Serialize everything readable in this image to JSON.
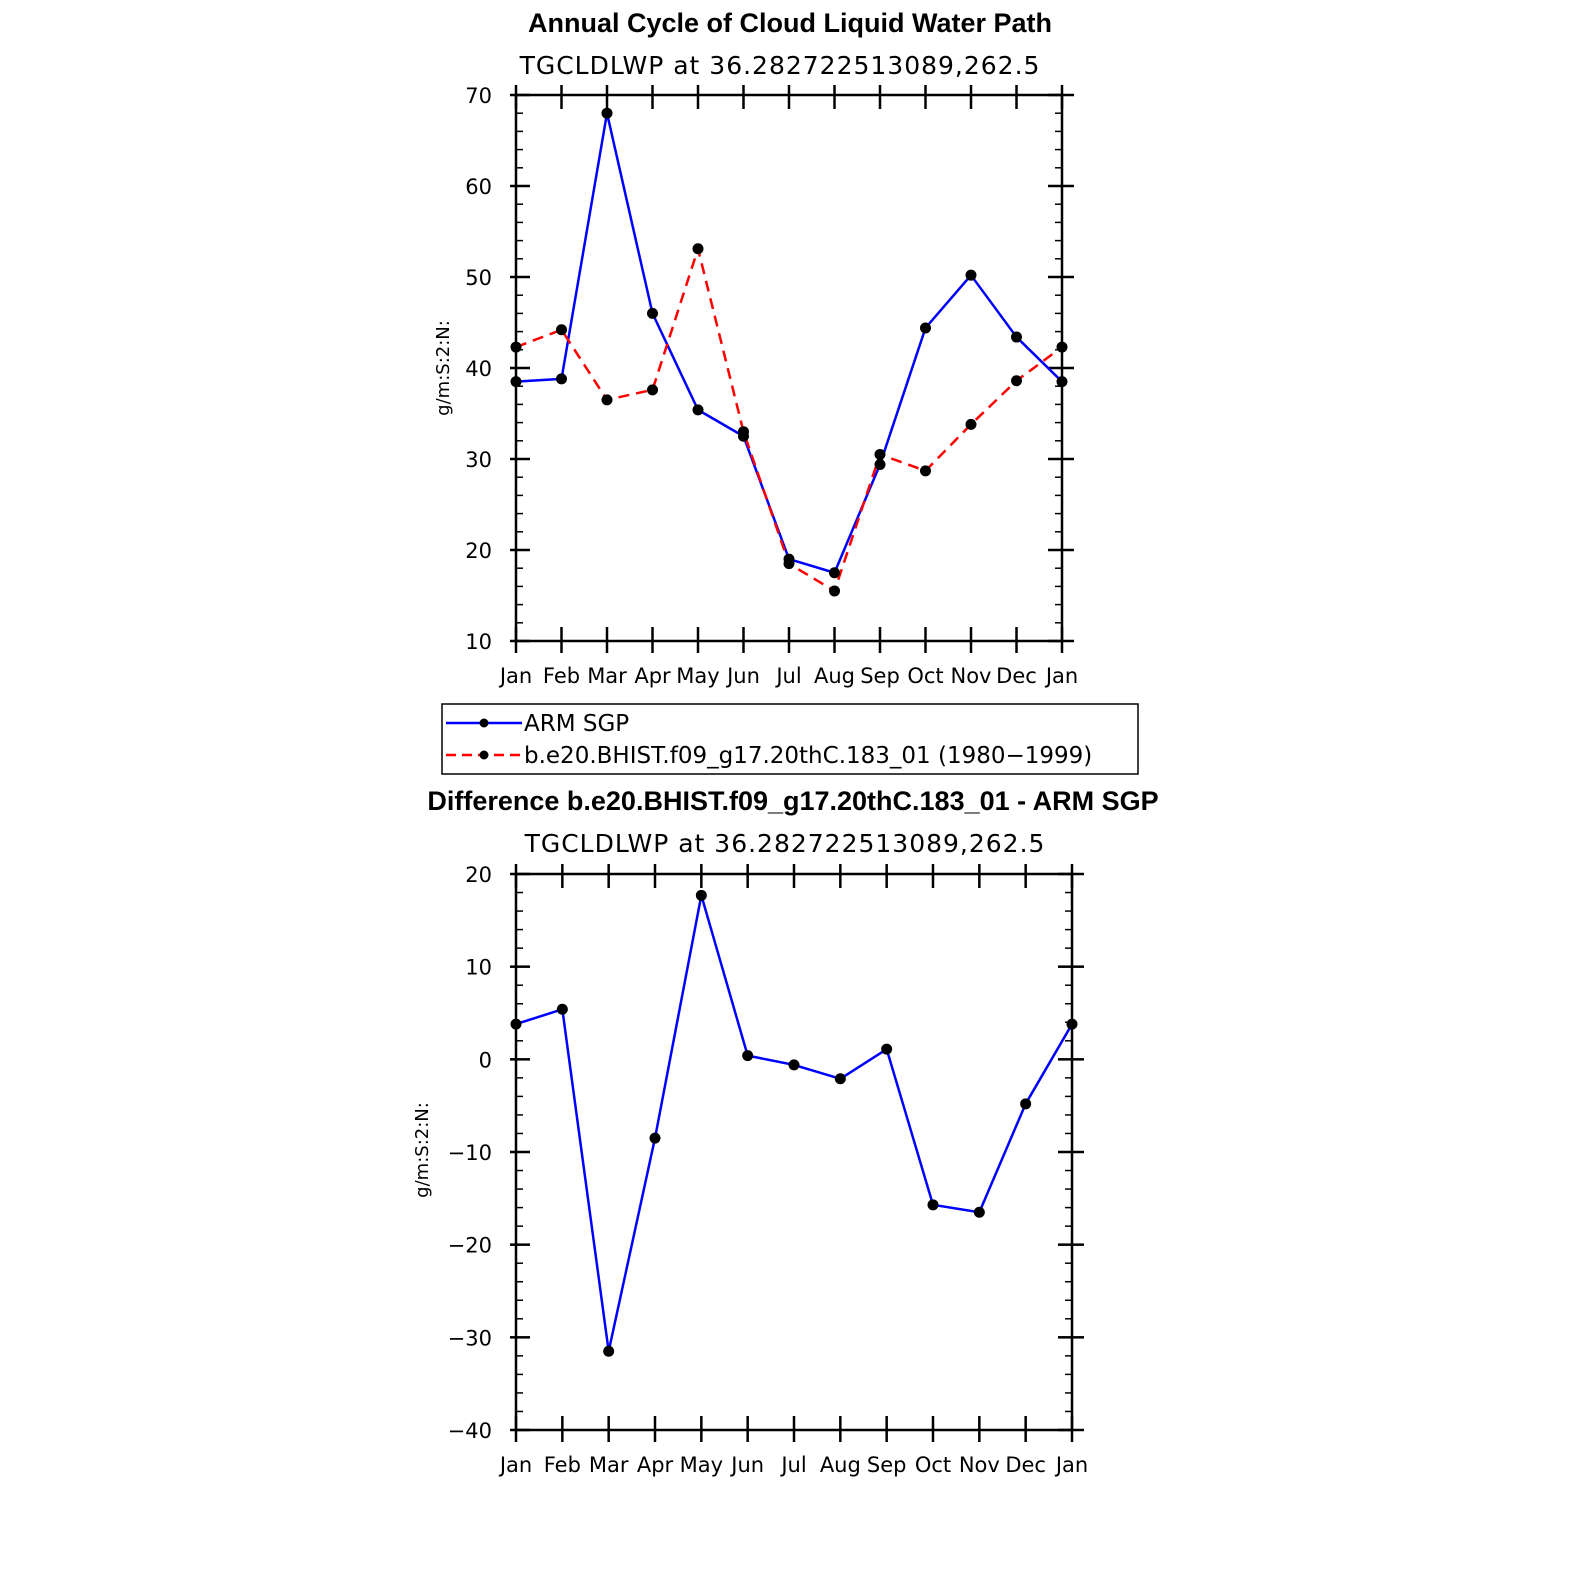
{
  "chart_data": [
    {
      "type": "line",
      "title": "Annual Cycle of Cloud Liquid Water Path",
      "subtitle": "TGCLDLWP at 36.282722513089,262.5",
      "xlabel": "",
      "ylabel": "g/m:S:2:N:",
      "categories": [
        "Jan",
        "Feb",
        "Mar",
        "Apr",
        "May",
        "Jun",
        "Jul",
        "Aug",
        "Sep",
        "Oct",
        "Nov",
        "Dec",
        "Jan"
      ],
      "ylim": [
        10,
        70
      ],
      "yticks": [
        "10",
        "20",
        "30",
        "40",
        "50",
        "60",
        "70"
      ],
      "series": [
        {
          "name": "ARM SGP",
          "color": "#0000ff",
          "dash": "solid",
          "values": [
            38.5,
            38.8,
            68.0,
            46.0,
            35.4,
            32.5,
            19.0,
            17.5,
            29.4,
            44.4,
            50.2,
            43.4,
            38.5
          ]
        },
        {
          "name": "b.e20.BHIST.f09_g17.20thC.183_01 (1980−1999)",
          "color": "#ff0000",
          "dash": "dashed",
          "values": [
            42.3,
            44.2,
            36.5,
            37.6,
            53.1,
            33.0,
            18.5,
            15.5,
            30.5,
            28.7,
            33.8,
            38.6,
            42.3
          ]
        }
      ],
      "legend": "below"
    },
    {
      "type": "line",
      "title": "Difference b.e20.BHIST.f09_g17.20thC.183_01 - ARM SGP",
      "subtitle": "TGCLDLWP at 36.282722513089,262.5",
      "xlabel": "",
      "ylabel": "g/m:S:2:N:",
      "categories": [
        "Jan",
        "Feb",
        "Mar",
        "Apr",
        "May",
        "Jun",
        "Jul",
        "Aug",
        "Sep",
        "Oct",
        "Nov",
        "Dec",
        "Jan"
      ],
      "ylim": [
        -40,
        20
      ],
      "yticks": [
        "−40",
        "−30",
        "−20",
        "−10",
        "0",
        "10",
        "20"
      ],
      "series": [
        {
          "name": "Difference",
          "color": "#0000ff",
          "dash": "solid",
          "values": [
            3.8,
            5.4,
            -31.5,
            -8.5,
            17.7,
            0.4,
            -0.6,
            -2.1,
            1.1,
            -15.7,
            -16.5,
            -4.8,
            3.8
          ]
        }
      ]
    }
  ]
}
